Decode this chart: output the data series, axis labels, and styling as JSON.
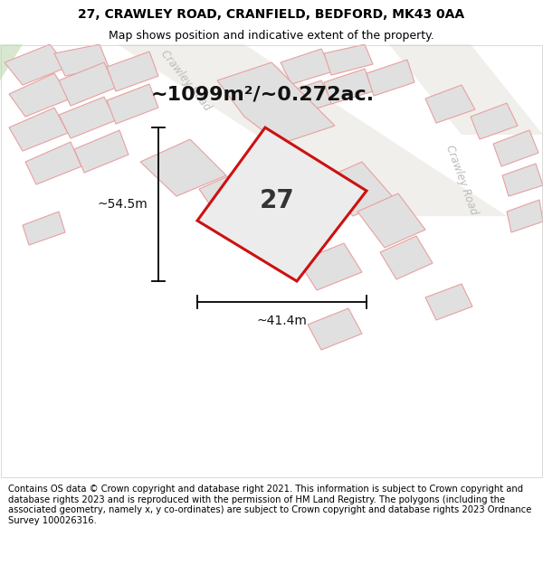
{
  "title": "27, CRAWLEY ROAD, CRANFIELD, BEDFORD, MK43 0AA",
  "subtitle": "Map shows position and indicative extent of the property.",
  "footer": "Contains OS data © Crown copyright and database right 2021. This information is subject to Crown copyright and database rights 2023 and is reproduced with the permission of HM Land Registry. The polygons (including the associated geometry, namely x, y co-ordinates) are subject to Crown copyright and database rights 2023 Ordnance Survey 100026316.",
  "area_text": "~1099m²/~0.272ac.",
  "dim_h": "~54.5m",
  "dim_w": "~41.4m",
  "map_bg": "#f9f9f7",
  "plot_fill": "#ececec",
  "plot_edge": "#cc1111",
  "building_fill": "#e0e0e0",
  "building_edge": "#e8a0a0",
  "road_color": "#f0efeb",
  "road_label_color": "#bbbbbb",
  "road_label": "Crawley Road",
  "plot_number": "27",
  "title_fontsize": 10,
  "subtitle_fontsize": 9,
  "footer_fontsize": 7.2,
  "area_fontsize": 16,
  "dim_fontsize": 10,
  "plot_label_fontsize": 20
}
